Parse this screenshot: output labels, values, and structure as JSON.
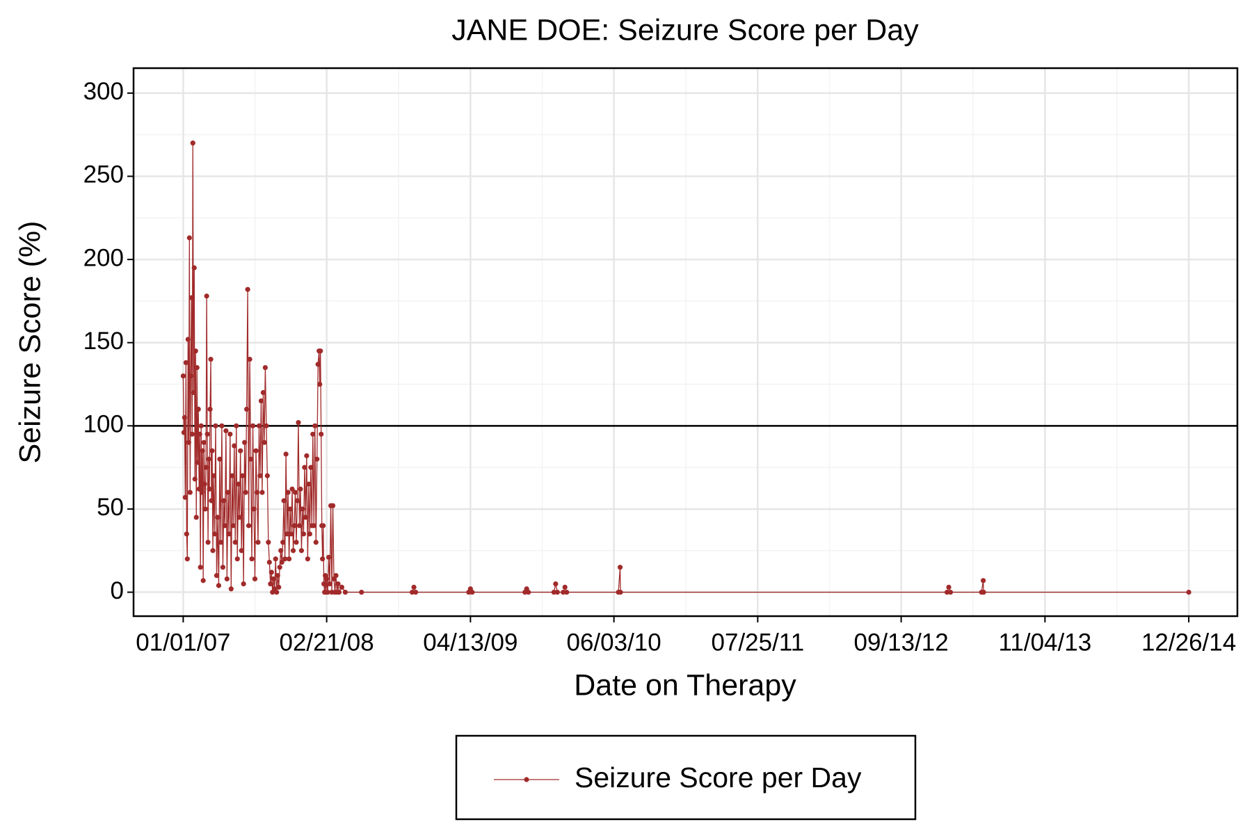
{
  "chart_data": {
    "type": "line",
    "title": "JANE DOE: Seizure Score per Day",
    "x_label": "Date on Therapy",
    "y_label": "Seizure Score (%)",
    "xlim": [
      "08/10/06",
      "05/16/15"
    ],
    "xticks": [
      "01/01/07",
      "02/21/08",
      "04/13/09",
      "06/03/10",
      "07/25/11",
      "09/13/12",
      "11/04/13",
      "12/26/14"
    ],
    "ylim": [
      -14.4,
      315
    ],
    "yticks": [
      0,
      50,
      100,
      150,
      200,
      250,
      300
    ],
    "hline": 100,
    "grid": true,
    "legend": "bottom",
    "x": [
      "01/01/07",
      "01/03/07",
      "01/05/07",
      "01/07/07",
      "01/09/07",
      "01/11/07",
      "01/13/07",
      "01/15/07",
      "01/17/07",
      "01/19/07",
      "01/21/07",
      "01/23/07",
      "01/25/07",
      "01/27/07",
      "01/29/07",
      "01/31/07",
      "02/02/07",
      "02/04/07",
      "02/06/07",
      "02/08/07",
      "02/10/07",
      "02/12/07",
      "02/14/07",
      "02/16/07",
      "02/18/07",
      "02/20/07",
      "02/22/07",
      "02/24/07",
      "02/26/07",
      "02/28/07",
      "03/02/07",
      "03/04/07",
      "03/06/07",
      "03/08/07",
      "03/10/07",
      "03/12/07",
      "03/14/07",
      "03/16/07",
      "03/18/07",
      "03/20/07",
      "03/22/07",
      "03/24/07",
      "03/26/07",
      "03/28/07",
      "03/30/07",
      "04/02/07",
      "04/05/07",
      "04/08/07",
      "04/11/07",
      "04/14/07",
      "04/17/07",
      "04/20/07",
      "04/23/07",
      "04/26/07",
      "04/29/07",
      "05/02/07",
      "05/05/07",
      "05/08/07",
      "05/11/07",
      "05/14/07",
      "05/17/07",
      "05/20/07",
      "05/23/07",
      "05/26/07",
      "05/29/07",
      "06/01/07",
      "06/04/07",
      "06/07/07",
      "06/10/07",
      "06/13/07",
      "06/16/07",
      "06/19/07",
      "06/22/07",
      "06/25/07",
      "06/28/07",
      "07/01/07",
      "07/04/07",
      "07/07/07",
      "07/10/07",
      "07/13/07",
      "07/16/07",
      "07/19/07",
      "07/22/07",
      "07/25/07",
      "07/28/07",
      "07/31/07",
      "08/03/07",
      "08/06/07",
      "08/09/07",
      "08/12/07",
      "08/15/07",
      "08/18/07",
      "08/21/07",
      "08/24/07",
      "08/27/07",
      "08/30/07",
      "09/02/07",
      "09/05/07",
      "09/08/07",
      "09/11/07",
      "09/14/07",
      "09/17/07",
      "09/20/07",
      "09/23/07",
      "09/26/07",
      "09/29/07",
      "10/02/07",
      "10/05/07",
      "10/08/07",
      "10/11/07",
      "10/14/07",
      "10/17/07",
      "10/20/07",
      "10/23/07",
      "10/26/07",
      "10/29/07",
      "11/01/07",
      "11/04/07",
      "11/07/07",
      "11/10/07",
      "11/13/07",
      "11/16/07",
      "11/19/07",
      "11/22/07",
      "11/25/07",
      "11/28/07",
      "12/01/07",
      "12/04/07",
      "12/07/07",
      "12/10/07",
      "12/13/07",
      "12/16/07",
      "12/19/07",
      "12/22/07",
      "12/25/07",
      "12/28/07",
      "12/31/07",
      "01/03/08",
      "01/06/08",
      "01/09/08",
      "01/12/08",
      "01/15/08",
      "01/18/08",
      "01/21/08",
      "01/24/08",
      "01/27/08",
      "01/30/08",
      "02/01/08",
      "02/03/08",
      "02/05/08",
      "02/07/08",
      "02/09/08",
      "02/11/08",
      "02/13/08",
      "02/15/08",
      "02/17/08",
      "02/19/08",
      "02/21/08",
      "02/24/08",
      "02/27/08",
      "03/01/08",
      "03/04/08",
      "03/07/08",
      "03/10/08",
      "03/13/08",
      "03/16/08",
      "03/19/08",
      "03/22/08",
      "03/25/08",
      "03/28/08",
      "04/05/08",
      "04/15/08",
      "06/01/08",
      "10/26/08",
      "10/31/08",
      "11/05/08",
      "04/08/09",
      "04/13/09",
      "04/18/09",
      "09/18/09",
      "09/23/09",
      "09/28/09",
      "12/11/09",
      "12/16/09",
      "12/21/09",
      "01/07/10",
      "01/12/10",
      "01/17/10",
      "06/16/10",
      "06/21/10",
      "06/22/10",
      "01/24/13",
      "01/29/13",
      "02/03/13",
      "05/04/13",
      "05/09/13",
      "05/10/13",
      "12/26/14"
    ],
    "series": [
      {
        "name": "Seizure Score per Day",
        "color": "#a12a2a",
        "values": [
          130,
          96,
          105,
          57,
          138,
          35,
          20,
          152,
          90,
          213,
          60,
          130,
          177,
          95,
          270,
          120,
          195,
          68,
          145,
          45,
          135,
          78,
          110,
          62,
          95,
          15,
          100,
          60,
          85,
          7,
          90,
          65,
          50,
          75,
          178,
          95,
          30,
          80,
          62,
          110,
          140,
          55,
          85,
          25,
          70,
          35,
          100,
          10,
          45,
          4,
          80,
          30,
          100,
          15,
          55,
          40,
          97,
          8,
          60,
          35,
          95,
          2,
          70,
          40,
          88,
          30,
          100,
          20,
          65,
          45,
          85,
          25,
          70,
          5,
          90,
          60,
          110,
          182,
          40,
          140,
          80,
          20,
          100,
          50,
          8,
          85,
          60,
          30,
          100,
          70,
          115,
          60,
          120,
          90,
          135,
          100,
          70,
          30,
          18,
          5,
          12,
          0,
          8,
          2,
          20,
          0,
          10,
          3,
          15,
          25,
          18,
          30,
          55,
          20,
          83,
          35,
          60,
          20,
          50,
          35,
          62,
          25,
          40,
          60,
          30,
          55,
          102,
          40,
          62,
          25,
          50,
          35,
          75,
          45,
          82,
          20,
          65,
          35,
          75,
          40,
          95,
          40,
          100,
          30,
          80,
          137,
          145,
          125,
          145,
          95,
          40,
          20,
          40,
          5,
          0,
          10,
          0,
          8,
          0,
          21,
          5,
          52,
          0,
          52,
          8,
          0,
          10,
          0,
          5,
          0,
          3,
          0,
          0,
          0,
          3,
          0,
          0,
          2,
          0,
          0,
          2,
          0,
          0,
          5,
          0,
          0,
          3,
          0,
          0,
          15,
          0,
          0,
          3,
          0,
          0,
          7,
          0,
          0
        ]
      }
    ]
  }
}
